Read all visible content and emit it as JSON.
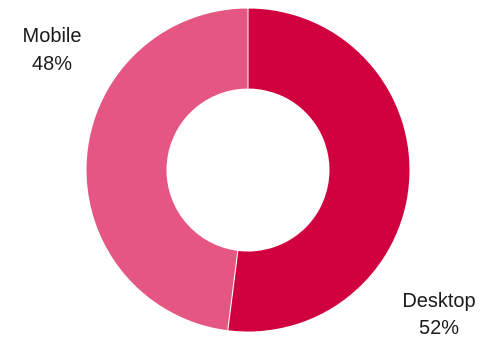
{
  "chart_data": {
    "type": "pie",
    "variant": "donut",
    "title": "",
    "slices": [
      {
        "label": "Desktop",
        "value": 52,
        "value_label": "52%",
        "color": "#d1003f"
      },
      {
        "label": "Mobile",
        "value": 48,
        "value_label": "48%",
        "color": "#e55683"
      }
    ],
    "start_angle_deg": 0,
    "direction": "clockwise",
    "legend": "none",
    "slice_separator_color": "#ffffff"
  }
}
